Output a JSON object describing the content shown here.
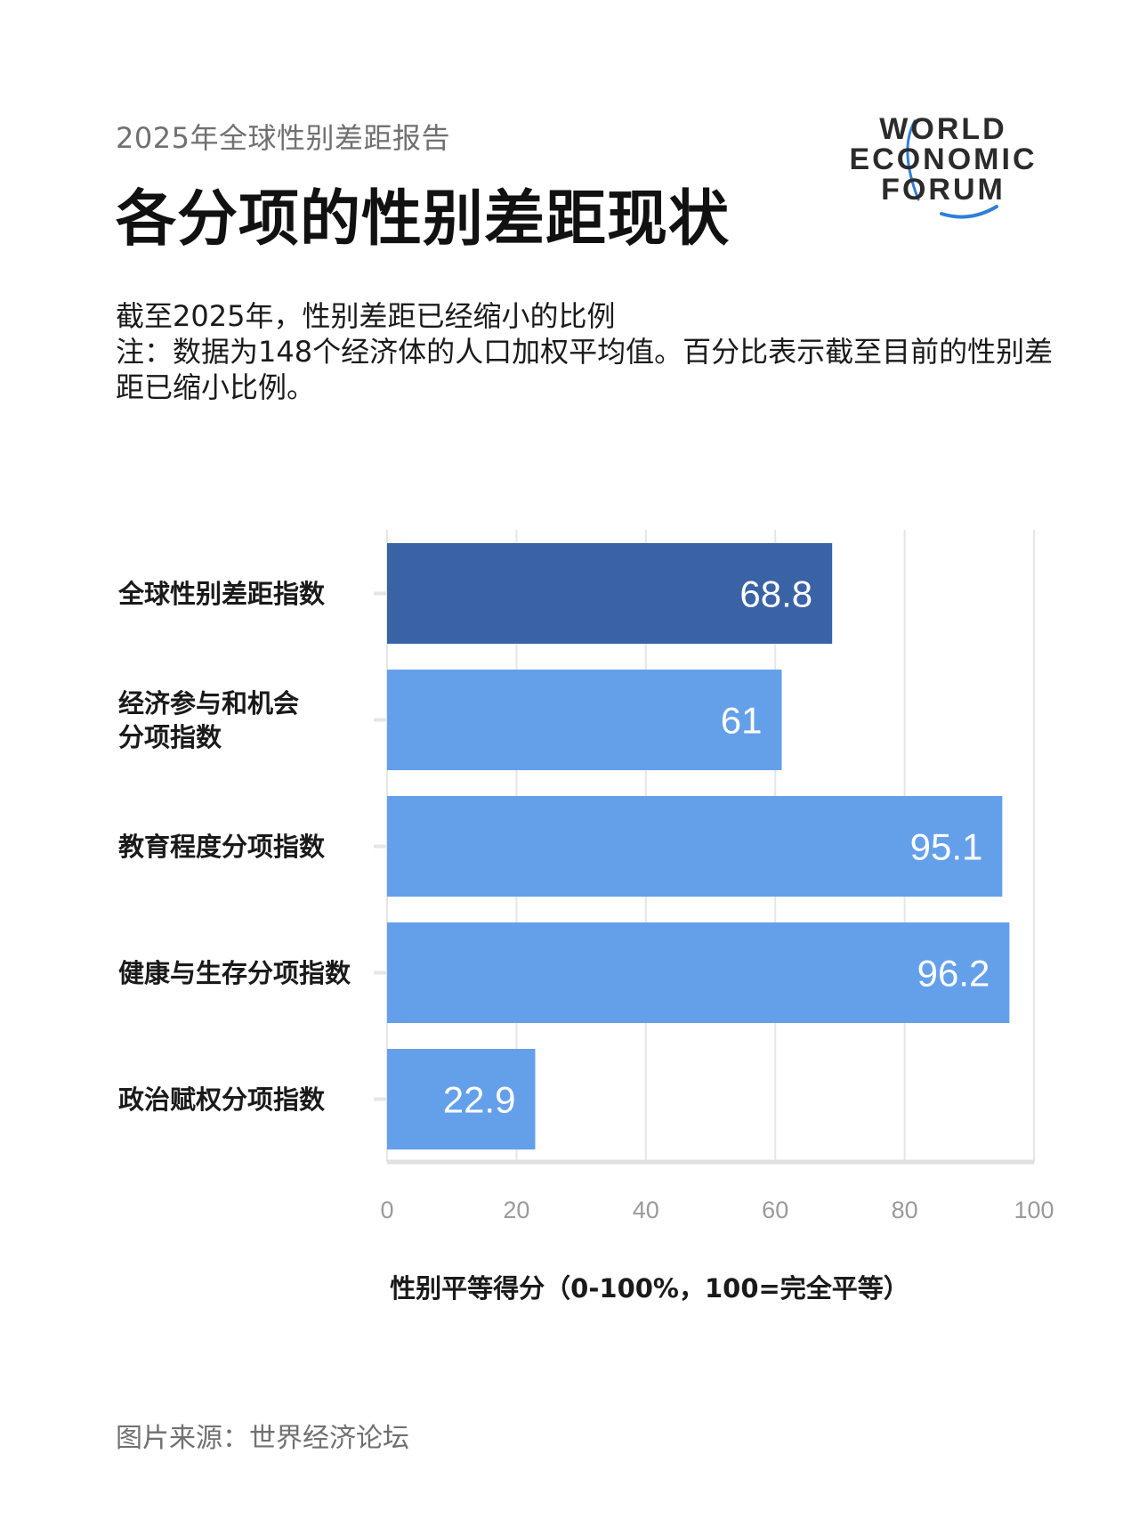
{
  "header": {
    "kicker": "2025年全球性别差距报告",
    "title": "各分项的性别差距现状"
  },
  "logo": {
    "lines": [
      "WORLD",
      "ECONOMIC",
      "FORUM"
    ],
    "arc_color": "#2f7fd6"
  },
  "description": {
    "subtitle": "截至2025年，性别差距已经缩小的比例",
    "note": "注：数据为148个经济体的人口加权平均值。百分比表示截至目前的性别差距已缩小比例。"
  },
  "chart_data": {
    "type": "bar",
    "orientation": "horizontal",
    "categories": [
      "全球性别差距指数",
      "经济参与和机会分项指数",
      "教育程度分项指数",
      "健康与生存分项指数",
      "政治赋权分项指数"
    ],
    "category_labels": [
      [
        "全球性别差距指数"
      ],
      [
        "经济参与和机会",
        "分项指数"
      ],
      [
        "教育程度分项指数"
      ],
      [
        "健康与生存分项指数"
      ],
      [
        "政治赋权分项指数"
      ]
    ],
    "values": [
      68.8,
      61,
      95.1,
      96.2,
      22.9
    ],
    "value_labels": [
      "68.8",
      "61",
      "95.1",
      "96.2",
      "22.9"
    ],
    "bar_colors": [
      "#3a63a6",
      "#64a0ea",
      "#64a0ea",
      "#64a0ea",
      "#64a0ea"
    ],
    "xlim": [
      0,
      100
    ],
    "xticks": [
      0,
      20,
      40,
      60,
      80,
      100
    ],
    "xlabel": "性别平等得分（0-100%，100=完全平等）",
    "ylabel": "",
    "grid": true
  },
  "footer": {
    "source": "图片来源：世界经济论坛"
  }
}
